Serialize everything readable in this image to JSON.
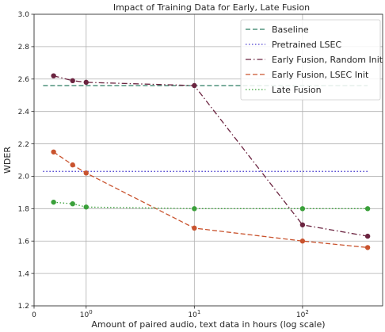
{
  "chart_data": {
    "type": "line",
    "title": "Impact of Training Data for Early, Late Fusion",
    "xlabel": "Amount of paired audio, text data in hours (log scale)",
    "ylabel": "WDER",
    "x_scale": "log",
    "xlim": [
      0.33,
      550
    ],
    "ylim": [
      1.2,
      3.0
    ],
    "x_ticks": [
      {
        "value": 0.33,
        "label": "0"
      },
      {
        "value": 1,
        "label": "10",
        "sup": "0"
      },
      {
        "value": 10,
        "label": "10",
        "sup": "1"
      },
      {
        "value": 100,
        "label": "10",
        "sup": "2"
      }
    ],
    "y_ticks": [
      "1.2",
      "1.4",
      "1.6",
      "1.8",
      "2.0",
      "2.2",
      "2.4",
      "2.6",
      "2.8",
      "3.0"
    ],
    "grid": true,
    "legend_position": "top-right",
    "series": [
      {
        "name": "Baseline",
        "color": "#2e7d64",
        "style": "dashed",
        "markers": false,
        "x": [
          0.4,
          400
        ],
        "y": [
          2.56,
          2.56
        ]
      },
      {
        "name": "Pretrained LSEC",
        "color": "#4b3fd0",
        "style": "dotted",
        "markers": false,
        "x": [
          0.4,
          400
        ],
        "y": [
          2.03,
          2.03
        ]
      },
      {
        "name": "Early Fusion, Random Init",
        "color": "#6b2440",
        "style": "dashdot",
        "markers": true,
        "x": [
          0.5,
          0.75,
          1,
          10,
          100,
          400
        ],
        "y": [
          2.62,
          2.59,
          2.58,
          2.56,
          1.7,
          1.63
        ]
      },
      {
        "name": "Early Fusion, LSEC Init",
        "color": "#c9532e",
        "style": "dashed",
        "markers": true,
        "x": [
          0.5,
          0.75,
          1,
          10,
          100,
          400
        ],
        "y": [
          2.15,
          2.07,
          2.02,
          1.68,
          1.6,
          1.56
        ]
      },
      {
        "name": "Late Fusion",
        "color": "#3aa03a",
        "style": "dotted",
        "markers": true,
        "x": [
          0.5,
          0.75,
          1,
          10,
          100,
          400
        ],
        "y": [
          1.84,
          1.83,
          1.81,
          1.8,
          1.8,
          1.8
        ]
      }
    ]
  }
}
